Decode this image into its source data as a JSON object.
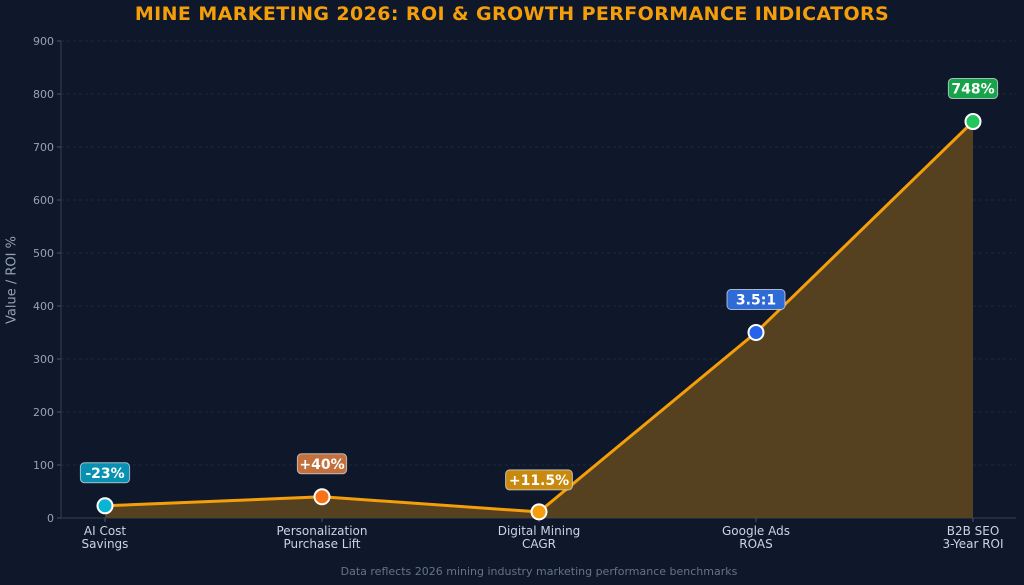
{
  "chart_data": {
    "type": "area",
    "title": "MINE MARKETING 2026: ROI & GROWTH PERFORMANCE INDICATORS",
    "ylabel": "Value / ROI %",
    "xlabel": "",
    "ylim": [
      0,
      900
    ],
    "yticks": [
      0,
      100,
      200,
      300,
      400,
      500,
      600,
      700,
      800,
      900
    ],
    "grid": true,
    "categories": [
      [
        "AI Cost",
        "Savings"
      ],
      [
        "Personalization",
        "Purchase Lift"
      ],
      [
        "Digital Mining",
        "CAGR"
      ],
      [
        "Google Ads",
        "ROAS"
      ],
      [
        "B2B SEO",
        "3-Year ROI"
      ]
    ],
    "values": [
      23,
      40,
      11.5,
      350,
      748
    ],
    "data_labels": [
      "-23%",
      "+40%",
      "+11.5%",
      "3.5:1",
      "748%"
    ],
    "point_colors": [
      "#06b6d4",
      "#f97316",
      "#f59e0b",
      "#2563eb",
      "#22c55e"
    ],
    "label_colors": [
      "#0891b2",
      "#c2703d",
      "#c88a0e",
      "#2f6bd6",
      "#16a34a"
    ],
    "line_color": "#f59e0b",
    "fill_color": "#5a4320",
    "footnote": "Data reflects 2026 mining industry marketing performance benchmarks"
  }
}
